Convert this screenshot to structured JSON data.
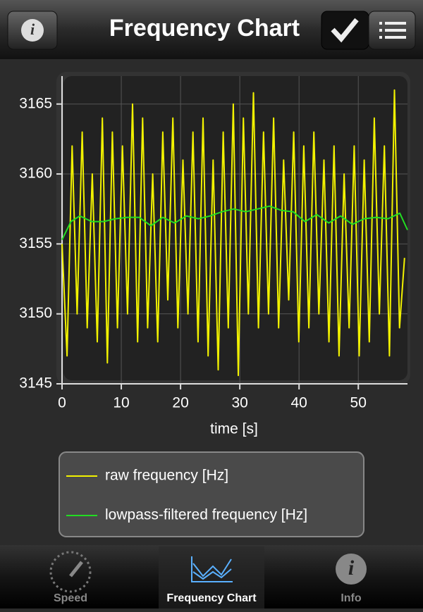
{
  "header": {
    "title": "Frequency Chart"
  },
  "chart_data": {
    "type": "line",
    "xlabel": "time [s]",
    "xlim": [
      0,
      58.3
    ],
    "xticks": [
      0,
      10,
      20,
      30,
      40,
      50
    ],
    "ylim": [
      3145,
      3167
    ],
    "yticks": [
      3145,
      3150,
      3155,
      3160,
      3165
    ],
    "grid": true,
    "series": [
      {
        "name": "raw frequency [Hz]",
        "color": "#f2f200",
        "x": [
          0,
          0.85,
          1.7,
          2.55,
          3.4,
          4.25,
          5.1,
          5.95,
          6.8,
          7.65,
          8.5,
          9.35,
          10.2,
          11.05,
          11.9,
          12.75,
          13.6,
          14.45,
          15.3,
          16.15,
          17,
          17.85,
          18.7,
          19.55,
          20.4,
          21.25,
          22.1,
          22.95,
          23.8,
          24.65,
          25.5,
          26.35,
          27.2,
          28.05,
          28.9,
          29.75,
          30.6,
          31.45,
          32.3,
          33.15,
          34,
          34.85,
          35.7,
          36.55,
          37.4,
          38.25,
          39.1,
          39.95,
          40.8,
          41.65,
          42.5,
          43.35,
          44.2,
          45.05,
          45.9,
          46.75,
          47.6,
          48.45,
          49.3,
          50.15,
          51,
          51.85,
          52.7,
          53.55,
          54.4,
          55.25,
          56.1,
          56.95,
          57.8
        ],
        "values": [
          3155,
          3147,
          3162,
          3150,
          3163,
          3149,
          3160,
          3148,
          3164,
          3146.5,
          3163,
          3149,
          3162,
          3150,
          3165,
          3148,
          3164,
          3149,
          3160,
          3148,
          3163,
          3151,
          3164,
          3149,
          3161,
          3150,
          3163,
          3148,
          3164,
          3147,
          3161,
          3146,
          3163,
          3149,
          3165,
          3145.6,
          3164,
          3150,
          3165.8,
          3149,
          3163,
          3150,
          3164,
          3149,
          3161,
          3151,
          3163,
          3148,
          3162,
          3149,
          3163,
          3150,
          3161,
          3148,
          3162,
          3147,
          3160,
          3149,
          3162,
          3147,
          3161,
          3148,
          3164,
          3150,
          3162,
          3147,
          3166,
          3149,
          3154
        ]
      },
      {
        "name": "lowpass-filtered frequency [Hz]",
        "color": "#22dd22",
        "x": [
          0,
          1.5,
          3,
          5,
          7,
          9,
          11,
          13,
          15,
          17,
          19,
          21,
          23,
          25,
          27,
          29,
          31,
          33,
          35,
          37,
          39,
          41,
          43,
          45,
          47,
          49,
          51,
          53,
          55,
          57,
          58.3
        ],
        "values": [
          3155.3,
          3156.6,
          3157.0,
          3156.6,
          3156.6,
          3156.8,
          3156.9,
          3156.9,
          3156.3,
          3156.9,
          3156.5,
          3157.0,
          3156.8,
          3157.0,
          3157.3,
          3157.5,
          3157.3,
          3157.5,
          3157.7,
          3157.4,
          3157.3,
          3156.6,
          3157.1,
          3156.5,
          3157.0,
          3156.4,
          3156.8,
          3156.9,
          3156.8,
          3157.2,
          3156.0
        ]
      }
    ]
  },
  "tabs": [
    {
      "label": "Speed"
    },
    {
      "label": "Frequency Chart"
    },
    {
      "label": "Info"
    }
  ]
}
